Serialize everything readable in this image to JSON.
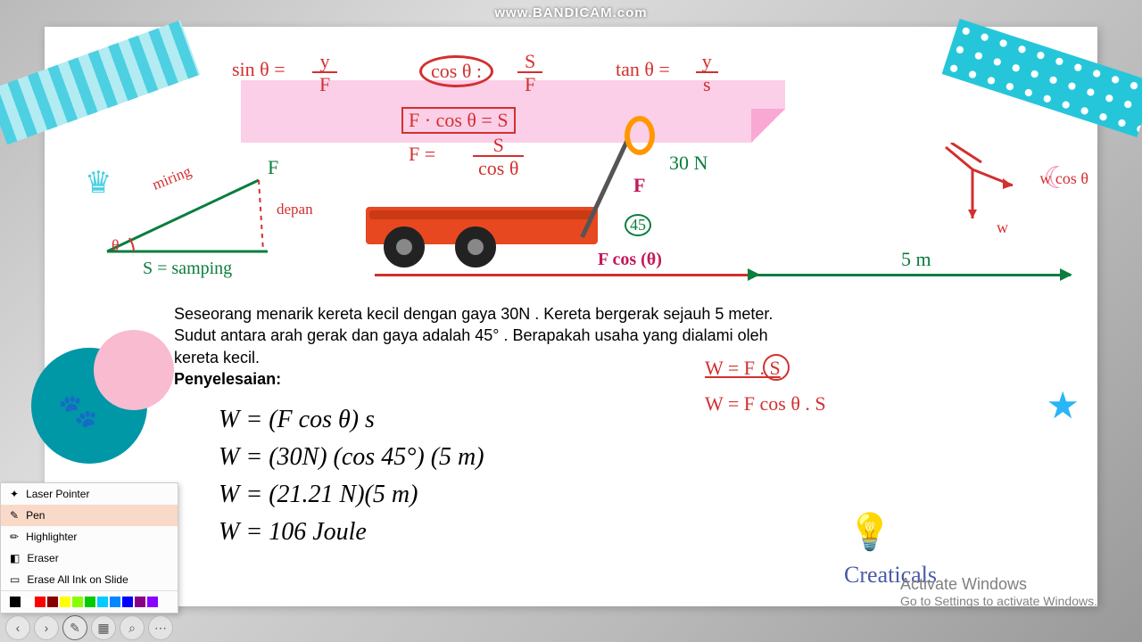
{
  "watermark": "www.BANDICAM.com",
  "top": {
    "sin": "sin θ  =",
    "sin_frac_top": "y",
    "sin_frac_bot": "F",
    "cos": "cos θ :",
    "cos_frac_top": "S",
    "cos_frac_bot": "F",
    "tan": "tan θ =",
    "tan_frac_top": "y",
    "tan_frac_bot": "s",
    "mid": "F · cos θ  = S",
    "f_eq": "F  =",
    "f_frac_top": "S",
    "f_frac_bot": "cos θ"
  },
  "tri": {
    "f": "F",
    "miring": "miring",
    "depan": "depan",
    "theta": "θ",
    "s": "S = samping"
  },
  "wagon": {
    "force": "30 N",
    "f": "F",
    "angle": "45",
    "fcos": "F cos (θ)",
    "dist": "5 m"
  },
  "vec": {
    "wcos": "w cos θ",
    "w": "w"
  },
  "problem": "Seseorang menarik kereta kecil dengan gaya 30N . Kereta bergerak sejauh 5 meter. Sudut antara arah gerak dan gaya adalah 45° . Berapakah usaha yang dialami oleh kereta kecil.",
  "solve": "Penyelesaian:",
  "eq": {
    "l1": "W  =  (F cos θ) s",
    "l2": "W  =  (30N) (cos 45°) (5  m)",
    "l3": "W  =  (21.21 N)(5  m)",
    "l4": "W  =  106 Joule"
  },
  "side": {
    "w1": "W  =  F  .  S",
    "w2": "W  =  F cos θ . S"
  },
  "creaticals": "Creaticals",
  "activate": {
    "t": "Activate Windows",
    "s": "Go to Settings to activate Windows."
  },
  "pen": {
    "laser": "Laser Pointer",
    "pen": "Pen",
    "hl": "Highlighter",
    "eraser": "Eraser",
    "erase_all": "Erase All Ink on Slide"
  },
  "swatches": [
    "#000",
    "#fff",
    "#f00",
    "#800",
    "#ff0",
    "#8f0",
    "#0c0",
    "#0cf",
    "#08f",
    "#00f",
    "#808",
    "#80f"
  ]
}
